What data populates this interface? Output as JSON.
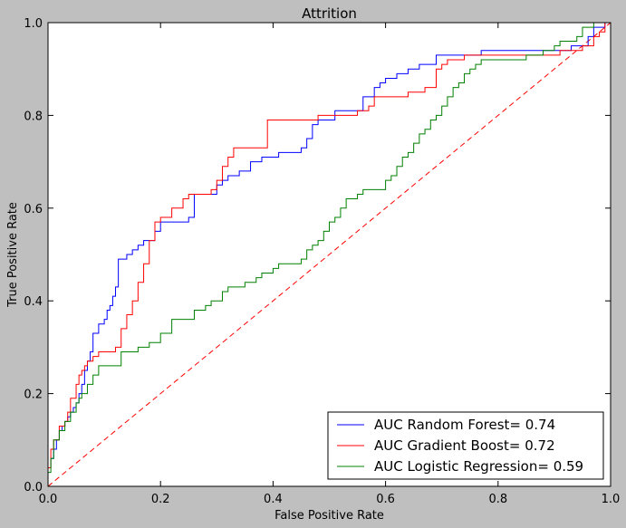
{
  "chart_data": {
    "type": "line",
    "title": "Attrition",
    "xlabel": "False Positive Rate",
    "ylabel": "True Positive Rate",
    "xlim": [
      0.0,
      1.0
    ],
    "ylim": [
      0.0,
      1.0
    ],
    "xticks": [
      "0.0",
      "0.2",
      "0.4",
      "0.6",
      "0.8",
      "1.0"
    ],
    "yticks": [
      "0.0",
      "0.2",
      "0.4",
      "0.6",
      "0.8",
      "1.0"
    ],
    "grid": false,
    "legend_position": "lower-right",
    "diagonal": {
      "name": "chance",
      "color": "#ff0000",
      "style": "dashed",
      "points": [
        [
          0,
          0
        ],
        [
          1,
          1
        ]
      ]
    },
    "series": [
      {
        "name": "AUC Random Forest= 0.74",
        "color": "#0000ff",
        "points": [
          [
            0,
            0
          ],
          [
            0,
            0.04
          ],
          [
            0.005,
            0.06
          ],
          [
            0.01,
            0.08
          ],
          [
            0.015,
            0.1
          ],
          [
            0.02,
            0.12
          ],
          [
            0.025,
            0.13
          ],
          [
            0.03,
            0.14
          ],
          [
            0.035,
            0.15
          ],
          [
            0.04,
            0.16
          ],
          [
            0.045,
            0.17
          ],
          [
            0.05,
            0.18
          ],
          [
            0.055,
            0.2
          ],
          [
            0.06,
            0.22
          ],
          [
            0.065,
            0.25
          ],
          [
            0.07,
            0.27
          ],
          [
            0.075,
            0.29
          ],
          [
            0.08,
            0.33
          ],
          [
            0.09,
            0.35
          ],
          [
            0.1,
            0.36
          ],
          [
            0.105,
            0.38
          ],
          [
            0.11,
            0.39
          ],
          [
            0.115,
            0.41
          ],
          [
            0.12,
            0.43
          ],
          [
            0.125,
            0.49
          ],
          [
            0.14,
            0.5
          ],
          [
            0.15,
            0.51
          ],
          [
            0.16,
            0.52
          ],
          [
            0.17,
            0.53
          ],
          [
            0.19,
            0.55
          ],
          [
            0.2,
            0.57
          ],
          [
            0.21,
            0.57
          ],
          [
            0.25,
            0.58
          ],
          [
            0.26,
            0.63
          ],
          [
            0.29,
            0.63
          ],
          [
            0.3,
            0.65
          ],
          [
            0.31,
            0.66
          ],
          [
            0.32,
            0.67
          ],
          [
            0.34,
            0.68
          ],
          [
            0.36,
            0.7
          ],
          [
            0.38,
            0.71
          ],
          [
            0.41,
            0.72
          ],
          [
            0.45,
            0.73
          ],
          [
            0.46,
            0.75
          ],
          [
            0.47,
            0.78
          ],
          [
            0.48,
            0.79
          ],
          [
            0.51,
            0.81
          ],
          [
            0.55,
            0.81
          ],
          [
            0.56,
            0.84
          ],
          [
            0.58,
            0.86
          ],
          [
            0.59,
            0.87
          ],
          [
            0.6,
            0.88
          ],
          [
            0.62,
            0.89
          ],
          [
            0.64,
            0.9
          ],
          [
            0.66,
            0.91
          ],
          [
            0.69,
            0.93
          ],
          [
            0.77,
            0.94
          ],
          [
            0.93,
            0.95
          ],
          [
            0.96,
            0.97
          ],
          [
            0.97,
            0.99
          ],
          [
            0.99,
            1.0
          ],
          [
            1.0,
            1.0
          ]
        ]
      },
      {
        "name": "AUC Gradient Boost= 0.72",
        "color": "#ff0000",
        "points": [
          [
            0,
            0
          ],
          [
            0,
            0.04
          ],
          [
            0.005,
            0.08
          ],
          [
            0.01,
            0.1
          ],
          [
            0.02,
            0.13
          ],
          [
            0.03,
            0.14
          ],
          [
            0.035,
            0.16
          ],
          [
            0.04,
            0.19
          ],
          [
            0.05,
            0.22
          ],
          [
            0.055,
            0.24
          ],
          [
            0.06,
            0.25
          ],
          [
            0.065,
            0.26
          ],
          [
            0.07,
            0.27
          ],
          [
            0.08,
            0.28
          ],
          [
            0.09,
            0.29
          ],
          [
            0.12,
            0.3
          ],
          [
            0.13,
            0.34
          ],
          [
            0.14,
            0.37
          ],
          [
            0.15,
            0.4
          ],
          [
            0.16,
            0.44
          ],
          [
            0.17,
            0.48
          ],
          [
            0.18,
            0.53
          ],
          [
            0.19,
            0.57
          ],
          [
            0.2,
            0.58
          ],
          [
            0.22,
            0.6
          ],
          [
            0.24,
            0.62
          ],
          [
            0.25,
            0.63
          ],
          [
            0.29,
            0.64
          ],
          [
            0.3,
            0.66
          ],
          [
            0.31,
            0.69
          ],
          [
            0.32,
            0.71
          ],
          [
            0.33,
            0.73
          ],
          [
            0.38,
            0.73
          ],
          [
            0.39,
            0.79
          ],
          [
            0.46,
            0.79
          ],
          [
            0.48,
            0.8
          ],
          [
            0.55,
            0.81
          ],
          [
            0.57,
            0.82
          ],
          [
            0.58,
            0.84
          ],
          [
            0.64,
            0.85
          ],
          [
            0.67,
            0.86
          ],
          [
            0.69,
            0.9
          ],
          [
            0.7,
            0.91
          ],
          [
            0.71,
            0.92
          ],
          [
            0.74,
            0.93
          ],
          [
            0.91,
            0.94
          ],
          [
            0.95,
            0.95
          ],
          [
            0.97,
            0.97
          ],
          [
            0.98,
            0.98
          ],
          [
            0.99,
            1.0
          ],
          [
            1.0,
            1.0
          ]
        ]
      },
      {
        "name": "AUC Logistic Regression= 0.59",
        "color": "#008000",
        "points": [
          [
            0,
            0
          ],
          [
            0,
            0.03
          ],
          [
            0.005,
            0.06
          ],
          [
            0.01,
            0.1
          ],
          [
            0.02,
            0.12
          ],
          [
            0.03,
            0.14
          ],
          [
            0.04,
            0.16
          ],
          [
            0.05,
            0.18
          ],
          [
            0.055,
            0.19
          ],
          [
            0.06,
            0.2
          ],
          [
            0.07,
            0.22
          ],
          [
            0.08,
            0.24
          ],
          [
            0.09,
            0.26
          ],
          [
            0.13,
            0.29
          ],
          [
            0.16,
            0.3
          ],
          [
            0.18,
            0.31
          ],
          [
            0.2,
            0.33
          ],
          [
            0.22,
            0.36
          ],
          [
            0.26,
            0.38
          ],
          [
            0.28,
            0.39
          ],
          [
            0.29,
            0.4
          ],
          [
            0.31,
            0.42
          ],
          [
            0.32,
            0.43
          ],
          [
            0.35,
            0.44
          ],
          [
            0.37,
            0.45
          ],
          [
            0.38,
            0.46
          ],
          [
            0.4,
            0.47
          ],
          [
            0.41,
            0.48
          ],
          [
            0.45,
            0.49
          ],
          [
            0.46,
            0.51
          ],
          [
            0.47,
            0.52
          ],
          [
            0.48,
            0.53
          ],
          [
            0.49,
            0.55
          ],
          [
            0.5,
            0.57
          ],
          [
            0.51,
            0.58
          ],
          [
            0.52,
            0.6
          ],
          [
            0.53,
            0.62
          ],
          [
            0.55,
            0.63
          ],
          [
            0.56,
            0.64
          ],
          [
            0.6,
            0.66
          ],
          [
            0.61,
            0.67
          ],
          [
            0.62,
            0.69
          ],
          [
            0.63,
            0.71
          ],
          [
            0.64,
            0.72
          ],
          [
            0.65,
            0.74
          ],
          [
            0.66,
            0.76
          ],
          [
            0.67,
            0.77
          ],
          [
            0.68,
            0.79
          ],
          [
            0.69,
            0.8
          ],
          [
            0.7,
            0.82
          ],
          [
            0.71,
            0.84
          ],
          [
            0.72,
            0.86
          ],
          [
            0.73,
            0.87
          ],
          [
            0.74,
            0.89
          ],
          [
            0.75,
            0.9
          ],
          [
            0.76,
            0.91
          ],
          [
            0.77,
            0.92
          ],
          [
            0.85,
            0.93
          ],
          [
            0.88,
            0.94
          ],
          [
            0.9,
            0.95
          ],
          [
            0.91,
            0.96
          ],
          [
            0.94,
            0.97
          ],
          [
            0.95,
            0.99
          ],
          [
            0.97,
            1.0
          ],
          [
            1.0,
            1.0
          ]
        ]
      }
    ]
  }
}
